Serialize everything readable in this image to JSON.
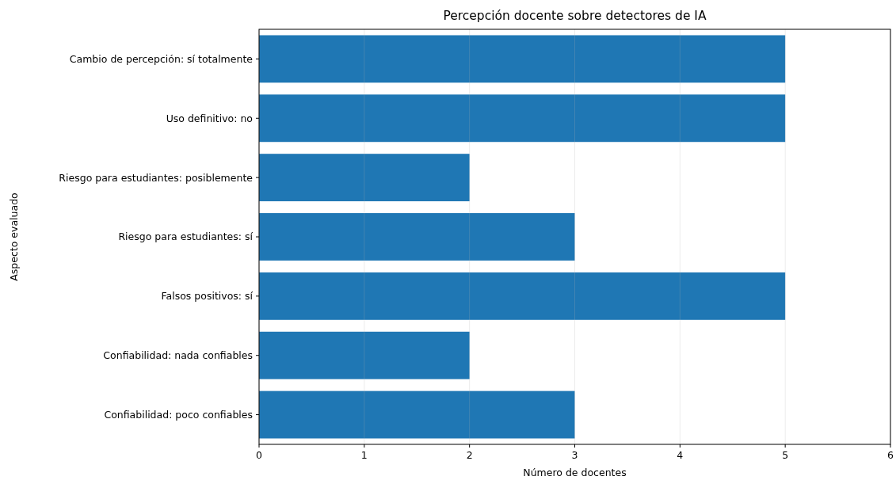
{
  "chart_data": {
    "type": "bar",
    "orientation": "horizontal",
    "title": "Percepción docente sobre detectores de IA",
    "xlabel": "Número de docentes",
    "ylabel": "Aspecto evaluado",
    "categories": [
      "Cambio de percepción: sí totalmente",
      "Uso definitivo: no",
      "Riesgo para estudiantes: posiblemente",
      "Riesgo para estudiantes: sí",
      "Falsos positivos: sí",
      "Confiabilidad: nada confiables",
      "Confiabilidad: poco confiables"
    ],
    "values": [
      5,
      5,
      2,
      3,
      5,
      2,
      3
    ],
    "color": "#1f77b4",
    "xlim": [
      0,
      6
    ],
    "xticks": [
      0,
      1,
      2,
      3,
      4,
      5,
      6
    ],
    "grid": "x"
  }
}
